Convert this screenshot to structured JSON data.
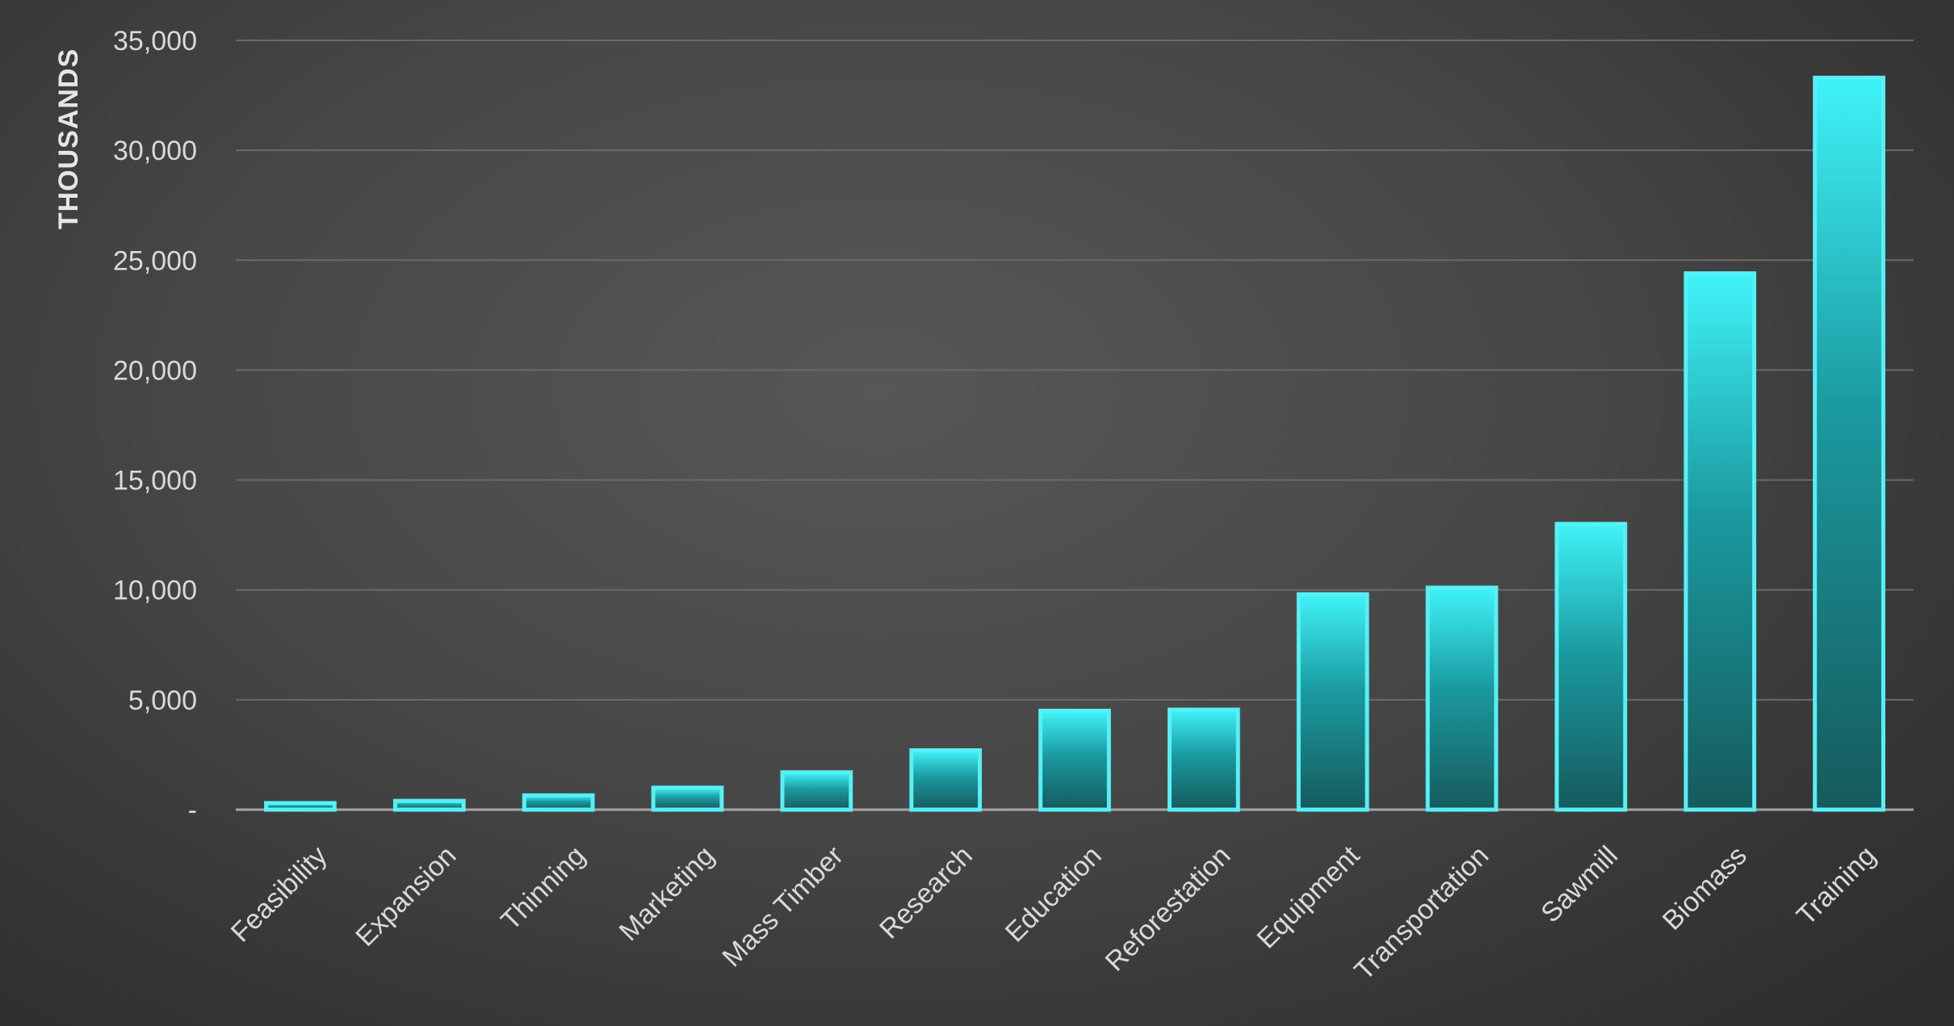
{
  "chart_data": {
    "type": "bar",
    "title": "",
    "xlabel": "",
    "ylabel": "THOUSANDS",
    "categories": [
      "Feasibility",
      "Expansion",
      "Thinning",
      "Marketing",
      "Mass Timber",
      "Research",
      "Education",
      "Reforestation",
      "Equipment",
      "Transportation",
      "Sawmill",
      "Biomass",
      "Training"
    ],
    "values": [
      300,
      400,
      650,
      1000,
      1700,
      2700,
      4500,
      4550,
      9800,
      10100,
      13000,
      24400,
      33300
    ],
    "ylim": [
      0,
      35000
    ],
    "y_ticks": [
      0,
      5000,
      10000,
      15000,
      20000,
      25000,
      30000,
      35000
    ],
    "y_tick_labels": [
      "-",
      "5,000",
      "10,000",
      "15,000",
      "20,000",
      "25,000",
      "30,000",
      "35,000"
    ],
    "grid": true,
    "legend": "none",
    "colors": {
      "bar_top": "#3ff3f8",
      "bar_mid": "#1a9aa0",
      "bar_bottom": "#165a5c",
      "bar_border": "#56f0f5",
      "grid": "#6a6a6a",
      "baseline": "#a6a6a6"
    }
  }
}
